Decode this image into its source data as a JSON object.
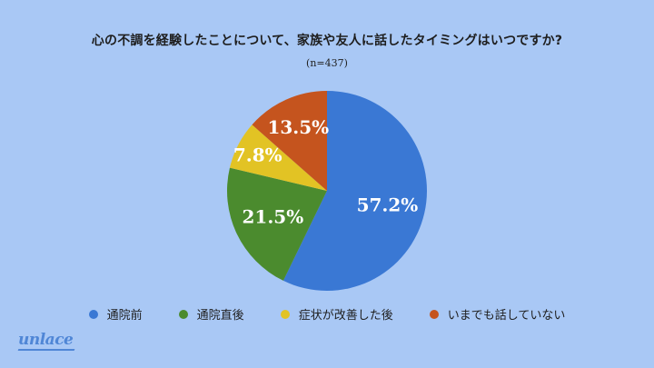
{
  "chart_data": {
    "type": "pie",
    "title": "心の不調を経験したことについて、家族や友人に話したタイミングはいつですか?",
    "subtitle": "(n=437)",
    "slices": [
      {
        "name": "通院前",
        "value": 57.2,
        "label": "57.2%",
        "color": "#3a78d4"
      },
      {
        "name": "通院直後",
        "value": 21.5,
        "label": "21.5%",
        "color": "#4b8b2e"
      },
      {
        "name": "症状が改善した後",
        "value": 7.8,
        "label": "7.8%",
        "color": "#e2c324"
      },
      {
        "name": "いまでも話していない",
        "value": 13.5,
        "label": "13.5%",
        "color": "#c5541e"
      }
    ],
    "start_angle_deg": 0,
    "direction": "clockwise",
    "legend_placement": "bottom"
  },
  "brand": {
    "logo_text": "unlace"
  }
}
